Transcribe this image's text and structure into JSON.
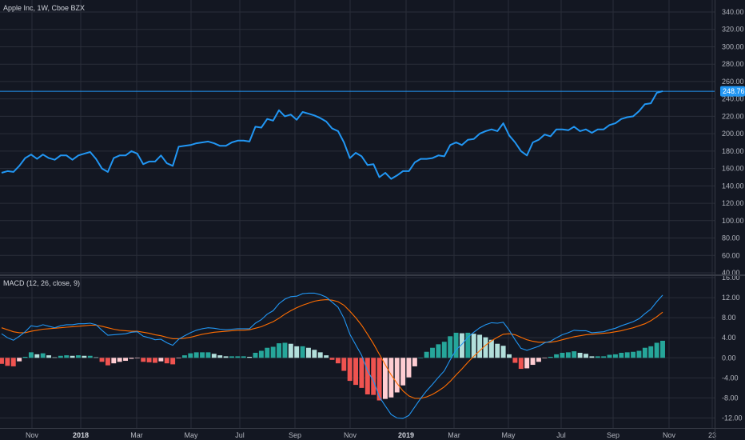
{
  "header": {
    "title": "Apple Inc, 1W, Cboe BZX"
  },
  "macd": {
    "title": "MACD (12, 26, close, 9)"
  },
  "price_tag": "248.76",
  "colors": {
    "background": "#131722",
    "grid": "#2a2e39",
    "price_line": "#2196f3",
    "macd_line": "#2196f3",
    "signal_line": "#ff6d00",
    "hist_pos_strong": "#26a69a",
    "hist_pos_weak": "#b2dfdb",
    "hist_neg_strong": "#ef5350",
    "hist_neg_weak": "#ffcdd2",
    "text": "#b2b5be",
    "price_tag_bg": "#2196f3"
  },
  "chart_data": [
    {
      "type": "line",
      "title": "Apple Inc, 1W, Cboe BZX",
      "x_ticks": [
        "Nov",
        "2018",
        "Mar",
        "May",
        "Jul",
        "Sep",
        "Nov",
        "2019",
        "Mar",
        "May",
        "Jul",
        "Sep",
        "Nov",
        "23"
      ],
      "ylim": [
        40,
        340
      ],
      "y_ticks": [
        "340.00",
        "320.00",
        "300.00",
        "280.00",
        "260.00",
        "240.00",
        "220.00",
        "200.00",
        "180.00",
        "160.00",
        "140.00",
        "120.00",
        "100.00",
        "80.00",
        "60.00",
        "40.00"
      ],
      "grid": true,
      "series": [
        {
          "values": [
            155,
            157,
            156,
            163,
            172,
            176,
            171,
            176,
            172,
            170,
            175,
            175,
            170,
            175,
            177,
            179,
            171,
            160,
            156,
            172,
            175,
            175,
            180,
            177,
            165,
            168,
            168,
            175,
            166,
            163,
            185,
            186,
            187,
            189,
            190,
            191,
            189,
            186,
            186,
            190,
            192,
            192,
            191,
            208,
            207,
            217,
            215,
            227,
            220,
            222,
            216,
            225,
            223,
            221,
            218,
            214,
            206,
            203,
            190,
            172,
            178,
            174,
            164,
            165,
            150,
            155,
            148,
            152,
            157,
            157,
            167,
            171,
            171,
            172,
            175,
            174,
            187,
            190,
            187,
            193,
            194,
            200,
            203,
            205,
            203,
            212,
            198,
            190,
            180,
            175,
            190,
            193,
            199,
            197,
            205,
            205,
            204,
            208,
            203,
            205,
            201,
            205,
            205,
            210,
            212,
            217,
            219,
            220,
            226,
            234,
            235,
            247,
            249
          ]
        }
      ]
    },
    {
      "type": "bar",
      "title": "MACD (12, 26, close, 9)",
      "ylim": [
        -14,
        16
      ],
      "y_ticks": [
        "16.00",
        "12.00",
        "8.00",
        "4.00",
        "0.00",
        "-4.00",
        "-8.00",
        "-12.00"
      ],
      "grid": true,
      "series": [
        {
          "name": "MACD",
          "values": [
            4.8,
            4.0,
            3.5,
            4.3,
            5.2,
            6.4,
            6.2,
            6.6,
            6.3,
            6.0,
            6.4,
            6.6,
            6.6,
            6.8,
            6.8,
            6.9,
            6.6,
            5.5,
            4.5,
            4.6,
            4.7,
            4.8,
            5.1,
            5.2,
            4.3,
            4.0,
            3.6,
            3.7,
            3.0,
            2.5,
            3.7,
            4.4,
            5.0,
            5.5,
            5.8,
            6.0,
            5.9,
            5.7,
            5.6,
            5.7,
            5.8,
            5.8,
            5.8,
            6.9,
            7.6,
            8.7,
            9.4,
            10.8,
            11.7,
            12.2,
            12.3,
            12.8,
            12.9,
            12.9,
            12.6,
            12.1,
            11.1,
            10.1,
            7.9,
            4.7,
            2.6,
            0.5,
            -2.6,
            -4.6,
            -7.8,
            -9.6,
            -11.3,
            -12.0,
            -12.1,
            -11.5,
            -9.8,
            -8.1,
            -6.6,
            -5.3,
            -3.9,
            -2.6,
            -0.4,
            1.6,
            2.7,
            4.1,
            5.1,
            6.0,
            6.6,
            7.0,
            6.9,
            7.1,
            5.5,
            3.6,
            1.9,
            1.5,
            1.9,
            2.3,
            3.0,
            3.3,
            4.0,
            4.6,
            5.0,
            5.5,
            5.4,
            5.4,
            5.0,
            5.1,
            5.2,
            5.6,
            5.9,
            6.4,
            6.8,
            7.2,
            7.8,
            8.8,
            9.7,
            11.2,
            12.5
          ]
        },
        {
          "name": "Signal",
          "values": [
            6.0,
            5.6,
            5.2,
            5.0,
            5.0,
            5.3,
            5.5,
            5.7,
            5.8,
            5.9,
            6.0,
            6.1,
            6.2,
            6.3,
            6.4,
            6.5,
            6.5,
            6.3,
            6.0,
            5.7,
            5.5,
            5.4,
            5.3,
            5.3,
            5.1,
            4.9,
            4.6,
            4.4,
            4.1,
            3.8,
            3.8,
            3.9,
            4.1,
            4.4,
            4.7,
            4.9,
            5.1,
            5.2,
            5.3,
            5.4,
            5.5,
            5.5,
            5.6,
            5.9,
            6.2,
            6.7,
            7.2,
            7.9,
            8.7,
            9.4,
            10.0,
            10.5,
            10.9,
            11.3,
            11.5,
            11.6,
            11.5,
            11.2,
            10.5,
            9.3,
            8.0,
            6.5,
            4.7,
            2.8,
            0.7,
            -1.4,
            -3.4,
            -5.1,
            -6.6,
            -7.6,
            -8.1,
            -8.1,
            -7.8,
            -7.3,
            -6.6,
            -5.8,
            -4.7,
            -3.4,
            -2.2,
            -0.9,
            0.3,
            1.4,
            2.5,
            3.4,
            4.1,
            4.7,
            4.8,
            4.6,
            4.1,
            3.6,
            3.3,
            3.1,
            3.1,
            3.1,
            3.3,
            3.6,
            3.9,
            4.2,
            4.4,
            4.6,
            4.7,
            4.8,
            4.9,
            5.0,
            5.2,
            5.4,
            5.7,
            6.0,
            6.4,
            6.8,
            7.4,
            8.2,
            9.1
          ]
        }
      ]
    }
  ]
}
